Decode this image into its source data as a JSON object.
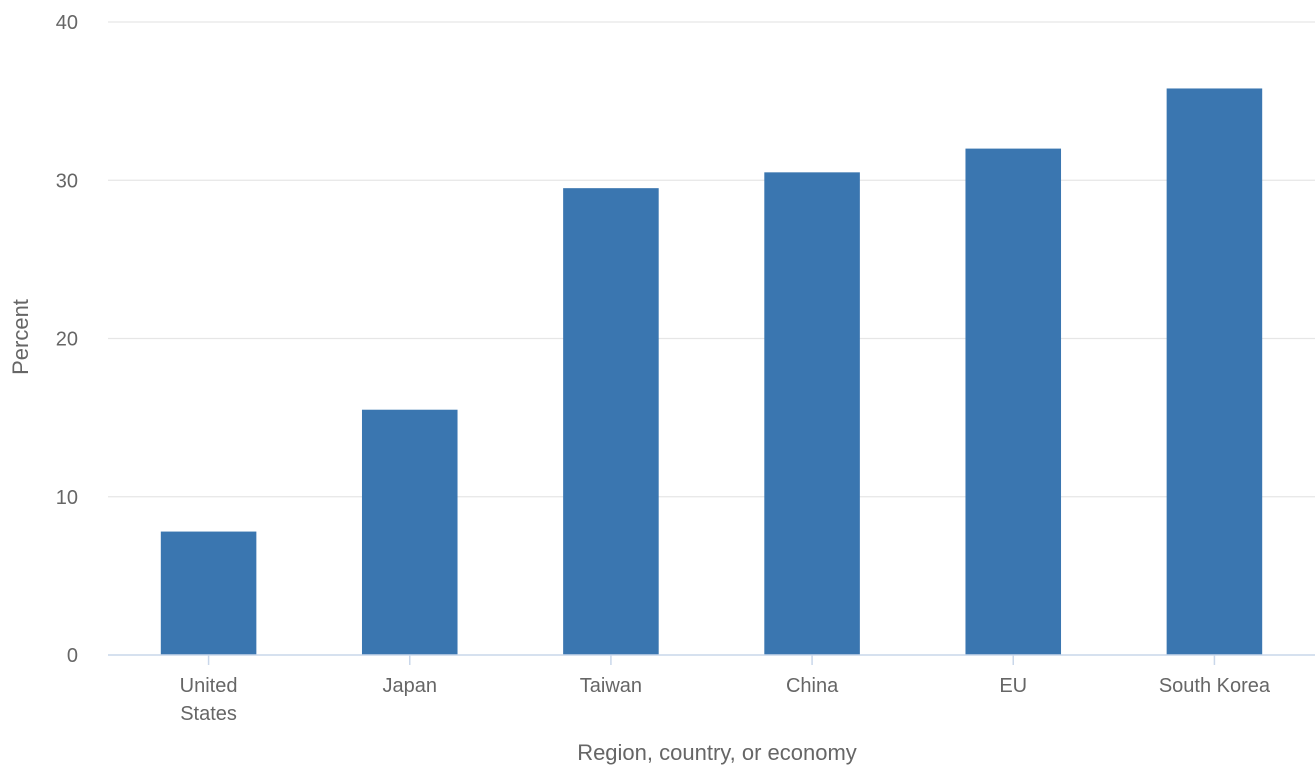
{
  "chart_data": {
    "type": "bar",
    "title": "",
    "xlabel": "Region, country, or economy",
    "ylabel": "Percent",
    "categories": [
      [
        "United",
        "States"
      ],
      [
        "Japan"
      ],
      [
        "Taiwan"
      ],
      [
        "China"
      ],
      [
        "EU"
      ],
      [
        "South Korea"
      ]
    ],
    "values": [
      7.8,
      15.5,
      29.5,
      30.5,
      32.0,
      35.8
    ],
    "ylim": [
      0,
      40
    ],
    "yticks": [
      "0",
      "10",
      "20",
      "30",
      "40"
    ],
    "bar_color": "#3a76b0",
    "grid": true,
    "legend": "none"
  }
}
